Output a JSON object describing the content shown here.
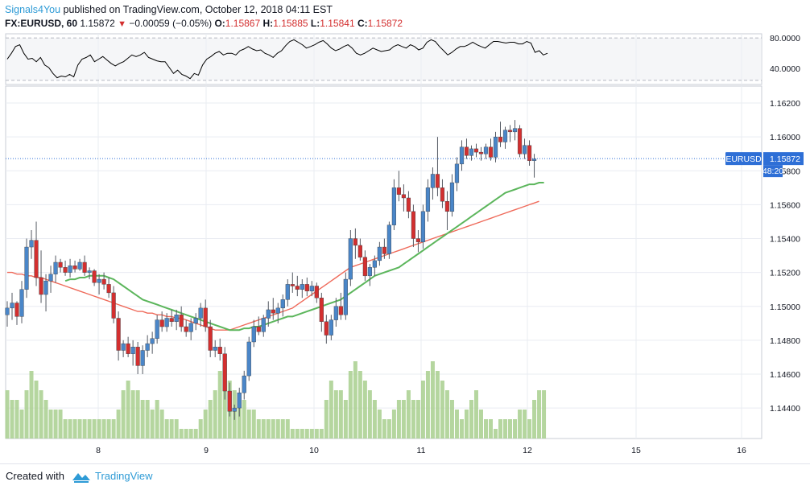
{
  "header": {
    "author": "Signals4You",
    "published_text": " published on TradingView.com, October 12, 2018 04:11 EST",
    "symbol": "FX:EURUSD, 60",
    "last": "1.15872",
    "change": "−0.00059 (−0.05%)",
    "ohlc": [
      {
        "label": "O:",
        "value": "1.15867"
      },
      {
        "label": "H:",
        "value": "1.15885"
      },
      {
        "label": "L:",
        "value": "1.15841"
      },
      {
        "label": "C:",
        "value": "1.15872"
      }
    ]
  },
  "footer": {
    "created_with": "Created with",
    "brand": "TradingView"
  },
  "colors": {
    "up": "#4a86c8",
    "down": "#d32f2f",
    "ma_fast": "#5cb65c",
    "ma_slow": "#ef6a5a",
    "volume": "#a8cf8e",
    "price_line": "#2e6fd6",
    "oscillator": "#000000"
  },
  "chart_data": [
    {
      "type": "line",
      "name": "oscillator",
      "y_ticks": [
        "80.0000",
        "40.0000"
      ],
      "ylim": [
        25,
        85
      ],
      "levels": [
        80,
        30
      ],
      "values": [
        55,
        62,
        70,
        72,
        62,
        55,
        56,
        52,
        57,
        48,
        45,
        38,
        33,
        35,
        34,
        37,
        34,
        48,
        55,
        57,
        60,
        52,
        55,
        58,
        54,
        50,
        47,
        50,
        52,
        56,
        60,
        58,
        60,
        63,
        57,
        55,
        53,
        52,
        52,
        45,
        38,
        42,
        37,
        35,
        32,
        38,
        36,
        48,
        55,
        58,
        62,
        64,
        60,
        62,
        62,
        60,
        65,
        67,
        70,
        67,
        65,
        66,
        62,
        60,
        57,
        62,
        65,
        71,
        76,
        78,
        75,
        72,
        68,
        70,
        72,
        75,
        77,
        73,
        68,
        65,
        67,
        70,
        72,
        68,
        62,
        60,
        62,
        65,
        68,
        66,
        64,
        65,
        66,
        70,
        72,
        70,
        68,
        72,
        70,
        66,
        68,
        75,
        78,
        76,
        70,
        65,
        60,
        63,
        67,
        70,
        70,
        72,
        75,
        72,
        70,
        68,
        72,
        76,
        76,
        75,
        74,
        75,
        75,
        73,
        73,
        76,
        74,
        63,
        65,
        60,
        62
      ]
    },
    {
      "type": "candlestick",
      "name": "FX:EURUSD, 60",
      "x_ticks": [
        "8",
        "9",
        "10",
        "11",
        "12",
        "15",
        "16"
      ],
      "y_ticks": [
        "1.16200",
        "1.16000",
        "1.15800",
        "1.15600",
        "1.15400",
        "1.15200",
        "1.15000",
        "1.14800",
        "1.14600",
        "1.14400"
      ],
      "ylim": [
        1.1422,
        1.163
      ],
      "last_price": "1.15872",
      "price_tag": "EURUSD",
      "countdown": "48:20",
      "ohlc": [
        [
          1.1495,
          1.1503,
          1.1488,
          1.1499
        ],
        [
          1.1499,
          1.1508,
          1.1492,
          1.1502
        ],
        [
          1.1502,
          1.1503,
          1.1489,
          1.1494
        ],
        [
          1.1494,
          1.1515,
          1.149,
          1.151
        ],
        [
          1.151,
          1.154,
          1.1505,
          1.1535
        ],
        [
          1.1535,
          1.1545,
          1.1528,
          1.1539
        ],
        [
          1.1539,
          1.155,
          1.1512,
          1.1517
        ],
        [
          1.1517,
          1.1533,
          1.1502,
          1.1507
        ],
        [
          1.1507,
          1.1519,
          1.1497,
          1.1515
        ],
        [
          1.1515,
          1.1524,
          1.1508,
          1.1519
        ],
        [
          1.1519,
          1.153,
          1.1514,
          1.1526
        ],
        [
          1.1526,
          1.1528,
          1.152,
          1.1523
        ],
        [
          1.1523,
          1.1527,
          1.1518,
          1.152
        ],
        [
          1.152,
          1.1528,
          1.1517,
          1.1524
        ],
        [
          1.1524,
          1.1527,
          1.152,
          1.1522
        ],
        [
          1.1522,
          1.1528,
          1.1521,
          1.1526
        ],
        [
          1.1526,
          1.153,
          1.1518,
          1.152
        ],
        [
          1.152,
          1.1523,
          1.1516,
          1.1521
        ],
        [
          1.1521,
          1.1522,
          1.1512,
          1.1514
        ],
        [
          1.1514,
          1.1519,
          1.1507,
          1.1516
        ],
        [
          1.1516,
          1.152,
          1.151,
          1.1513
        ],
        [
          1.1513,
          1.1517,
          1.1505,
          1.1508
        ],
        [
          1.1508,
          1.1512,
          1.149,
          1.1493
        ],
        [
          1.1493,
          1.1497,
          1.1468,
          1.1474
        ],
        [
          1.1474,
          1.148,
          1.147,
          1.1478
        ],
        [
          1.1478,
          1.1482,
          1.147,
          1.1472
        ],
        [
          1.1472,
          1.148,
          1.1465,
          1.1476
        ],
        [
          1.1476,
          1.1479,
          1.146,
          1.1465
        ],
        [
          1.1465,
          1.1477,
          1.146,
          1.1474
        ],
        [
          1.1474,
          1.1483,
          1.147,
          1.1478
        ],
        [
          1.1478,
          1.1485,
          1.1472,
          1.1481
        ],
        [
          1.1481,
          1.1495,
          1.1478,
          1.1492
        ],
        [
          1.1492,
          1.1497,
          1.1485,
          1.1488
        ],
        [
          1.1488,
          1.1496,
          1.1485,
          1.1493
        ],
        [
          1.1493,
          1.1498,
          1.1488,
          1.1491
        ],
        [
          1.1491,
          1.1498,
          1.1486,
          1.1495
        ],
        [
          1.1495,
          1.15,
          1.1485,
          1.1488
        ],
        [
          1.1488,
          1.1492,
          1.1482,
          1.1485
        ],
        [
          1.1485,
          1.1493,
          1.148,
          1.149
        ],
        [
          1.149,
          1.1496,
          1.1486,
          1.1493
        ],
        [
          1.1493,
          1.1502,
          1.1488,
          1.1499
        ],
        [
          1.1499,
          1.1504,
          1.1485,
          1.1488
        ],
        [
          1.1488,
          1.1492,
          1.147,
          1.1474
        ],
        [
          1.1474,
          1.148,
          1.147,
          1.1476
        ],
        [
          1.1476,
          1.1481,
          1.1468,
          1.1472
        ],
        [
          1.1472,
          1.1476,
          1.1445,
          1.145
        ],
        [
          1.145,
          1.1455,
          1.1435,
          1.1438
        ],
        [
          1.1438,
          1.1442,
          1.1433,
          1.144
        ],
        [
          1.144,
          1.1452,
          1.1435,
          1.1449
        ],
        [
          1.1449,
          1.1462,
          1.1445,
          1.1459
        ],
        [
          1.1459,
          1.1482,
          1.1456,
          1.1479
        ],
        [
          1.1479,
          1.1492,
          1.1476,
          1.1488
        ],
        [
          1.1488,
          1.1494,
          1.1483,
          1.1485
        ],
        [
          1.1485,
          1.1495,
          1.1482,
          1.1493
        ],
        [
          1.1493,
          1.1503,
          1.1488,
          1.1498
        ],
        [
          1.1498,
          1.1505,
          1.1492,
          1.1496
        ],
        [
          1.1496,
          1.1502,
          1.149,
          1.1499
        ],
        [
          1.1499,
          1.1507,
          1.1494,
          1.1504
        ],
        [
          1.1504,
          1.1516,
          1.15,
          1.1513
        ],
        [
          1.1513,
          1.152,
          1.1508,
          1.1512
        ],
        [
          1.1512,
          1.1518,
          1.1506,
          1.151
        ],
        [
          1.151,
          1.1516,
          1.1505,
          1.1513
        ],
        [
          1.1513,
          1.1517,
          1.1506,
          1.1509
        ],
        [
          1.1509,
          1.1515,
          1.1506,
          1.1512
        ],
        [
          1.1512,
          1.1514,
          1.1502,
          1.1505
        ],
        [
          1.1505,
          1.1508,
          1.1485,
          1.1491
        ],
        [
          1.1491,
          1.1495,
          1.1478,
          1.1483
        ],
        [
          1.1483,
          1.1495,
          1.148,
          1.1492
        ],
        [
          1.1492,
          1.1505,
          1.1488,
          1.15
        ],
        [
          1.15,
          1.1508,
          1.1492,
          1.1495
        ],
        [
          1.1495,
          1.152,
          1.1492,
          1.1516
        ],
        [
          1.1516,
          1.1545,
          1.1512,
          1.154
        ],
        [
          1.154,
          1.1546,
          1.1528,
          1.1536
        ],
        [
          1.1536,
          1.154,
          1.1527,
          1.1529
        ],
        [
          1.1529,
          1.1533,
          1.1515,
          1.1518
        ],
        [
          1.1518,
          1.1525,
          1.1512,
          1.1523
        ],
        [
          1.1523,
          1.153,
          1.1518,
          1.1527
        ],
        [
          1.1527,
          1.1538,
          1.1524,
          1.1535
        ],
        [
          1.1535,
          1.154,
          1.1528,
          1.1531
        ],
        [
          1.1531,
          1.155,
          1.1528,
          1.1548
        ],
        [
          1.1548,
          1.1575,
          1.1545,
          1.157
        ],
        [
          1.157,
          1.158,
          1.1562,
          1.1566
        ],
        [
          1.1566,
          1.1572,
          1.1556,
          1.1564
        ],
        [
          1.1564,
          1.1568,
          1.1552,
          1.1556
        ],
        [
          1.1556,
          1.156,
          1.1535,
          1.154
        ],
        [
          1.154,
          1.1545,
          1.1532,
          1.1538
        ],
        [
          1.1538,
          1.156,
          1.1534,
          1.1556
        ],
        [
          1.1556,
          1.1575,
          1.155,
          1.157
        ],
        [
          1.157,
          1.1582,
          1.1563,
          1.1578
        ],
        [
          1.1578,
          1.16,
          1.1565,
          1.157
        ],
        [
          1.157,
          1.1575,
          1.1558,
          1.1562
        ],
        [
          1.1562,
          1.1568,
          1.1545,
          1.1556
        ],
        [
          1.1556,
          1.1578,
          1.1553,
          1.1573
        ],
        [
          1.1573,
          1.1588,
          1.1568,
          1.1584
        ],
        [
          1.1584,
          1.1598,
          1.158,
          1.1594
        ],
        [
          1.1594,
          1.1599,
          1.1587,
          1.1589
        ],
        [
          1.1589,
          1.1595,
          1.1586,
          1.1593
        ],
        [
          1.1593,
          1.1596,
          1.1588,
          1.1591
        ],
        [
          1.1591,
          1.1594,
          1.1586,
          1.159
        ],
        [
          1.159,
          1.1596,
          1.1587,
          1.1594
        ],
        [
          1.1594,
          1.1599,
          1.1586,
          1.1588
        ],
        [
          1.1588,
          1.1603,
          1.1585,
          1.16
        ],
        [
          1.16,
          1.1609,
          1.1594,
          1.1597
        ],
        [
          1.1597,
          1.1606,
          1.1593,
          1.1604
        ],
        [
          1.1604,
          1.1607,
          1.1597,
          1.1603
        ],
        [
          1.1603,
          1.161,
          1.1598,
          1.1605
        ],
        [
          1.1605,
          1.1607,
          1.1588,
          1.159
        ],
        [
          1.159,
          1.1599,
          1.1587,
          1.1595
        ],
        [
          1.1595,
          1.1598,
          1.1583,
          1.1586
        ],
        [
          1.1586,
          1.159,
          1.1576,
          1.1587
        ]
      ],
      "volume": [
        5,
        4,
        4,
        3,
        5,
        7,
        6,
        5,
        4,
        3,
        3,
        3,
        2,
        2,
        2,
        2,
        2,
        2,
        2,
        2,
        2,
        2,
        2,
        3,
        5,
        6,
        5,
        5,
        4,
        4,
        3,
        4,
        3,
        2,
        2,
        2,
        1,
        1,
        1,
        1,
        2,
        3,
        4,
        5,
        7,
        8,
        6,
        5,
        4,
        4,
        3,
        3,
        2,
        2,
        2,
        2,
        2,
        2,
        2,
        1,
        1,
        1,
        1,
        1,
        1,
        1,
        4,
        6,
        5,
        5,
        4,
        7,
        8,
        7,
        6,
        5,
        4,
        3,
        2,
        2,
        3,
        4,
        4,
        5,
        4,
        4,
        6,
        7,
        8,
        7,
        6,
        5,
        4,
        3,
        2,
        3,
        4,
        5,
        3,
        2,
        2,
        1,
        2,
        2,
        2,
        2,
        3,
        3,
        2,
        4,
        5,
        5
      ],
      "series": [
        {
          "name": "ma_slow",
          "values": [
            1.152,
            1.152,
            1.1519,
            1.1519,
            1.1518,
            1.1518,
            1.1517,
            1.1517,
            1.1516,
            1.1515,
            1.1514,
            1.1513,
            1.1512,
            1.1511,
            1.151,
            1.1509,
            1.1508,
            1.1507,
            1.1506,
            1.1505,
            1.1504,
            1.1503,
            1.1502,
            1.1501,
            1.15,
            1.1499,
            1.1498,
            1.1497,
            1.1497,
            1.1496,
            1.1496,
            1.1495,
            1.1495,
            1.1494,
            1.1494,
            1.1493,
            1.1493,
            1.1492,
            1.1491,
            1.149,
            1.1489,
            1.1488,
            1.1487,
            1.1486,
            1.1486,
            1.1486,
            1.1486,
            1.1487,
            1.1488,
            1.1489,
            1.149,
            1.1491,
            1.1492,
            1.1493,
            1.1494,
            1.1495,
            1.1496,
            1.1497,
            1.1498,
            1.1499,
            1.1501,
            1.1503,
            1.1505,
            1.1507,
            1.1509,
            1.1511,
            1.1513,
            1.1515,
            1.1517,
            1.1519,
            1.1521,
            1.1523,
            1.1524,
            1.1525,
            1.1526,
            1.1527,
            1.1528,
            1.1529,
            1.153,
            1.1531,
            1.1532,
            1.1533,
            1.1534,
            1.1535,
            1.1536,
            1.1537,
            1.1538,
            1.1539,
            1.154,
            1.1541,
            1.1542,
            1.1543,
            1.1544,
            1.1545,
            1.1546,
            1.1547,
            1.1548,
            1.1549,
            1.155,
            1.1551,
            1.1552,
            1.1553,
            1.1554,
            1.1555,
            1.1556,
            1.1557,
            1.1558,
            1.1559,
            1.156,
            1.1561,
            1.1562
          ]
        },
        {
          "name": "ma_fast",
          "values": [
            null,
            null,
            null,
            null,
            null,
            null,
            null,
            null,
            null,
            null,
            null,
            null,
            1.1515,
            1.1516,
            1.1516,
            1.1517,
            1.1517,
            1.1518,
            1.1518,
            1.1518,
            1.1518,
            1.1517,
            1.1516,
            1.1514,
            1.1512,
            1.151,
            1.1508,
            1.1506,
            1.1504,
            1.1503,
            1.1502,
            1.1501,
            1.15,
            1.1499,
            1.1498,
            1.1497,
            1.1496,
            1.1495,
            1.1494,
            1.1493,
            1.1492,
            1.1491,
            1.149,
            1.1489,
            1.1488,
            1.1487,
            1.1486,
            1.1486,
            1.1486,
            1.1487,
            1.1487,
            1.1488,
            1.1488,
            1.1489,
            1.149,
            1.1491,
            1.1492,
            1.1493,
            1.1494,
            1.1494,
            1.1495,
            1.1496,
            1.1497,
            1.1498,
            1.1499,
            1.15,
            1.1501,
            1.1502,
            1.1503,
            1.1504,
            1.1506,
            1.1508,
            1.151,
            1.1512,
            1.1514,
            1.1516,
            1.1518,
            1.1519,
            1.152,
            1.1521,
            1.1522,
            1.1523,
            1.1525,
            1.1527,
            1.1529,
            1.1531,
            1.1533,
            1.1535,
            1.1537,
            1.1539,
            1.1541,
            1.1543,
            1.1545,
            1.1547,
            1.1549,
            1.1551,
            1.1553,
            1.1555,
            1.1557,
            1.1559,
            1.1561,
            1.1563,
            1.1565,
            1.1567,
            1.1568,
            1.1569,
            1.157,
            1.1571,
            1.1572,
            1.1572,
            1.1573,
            1.1573
          ]
        }
      ]
    }
  ]
}
